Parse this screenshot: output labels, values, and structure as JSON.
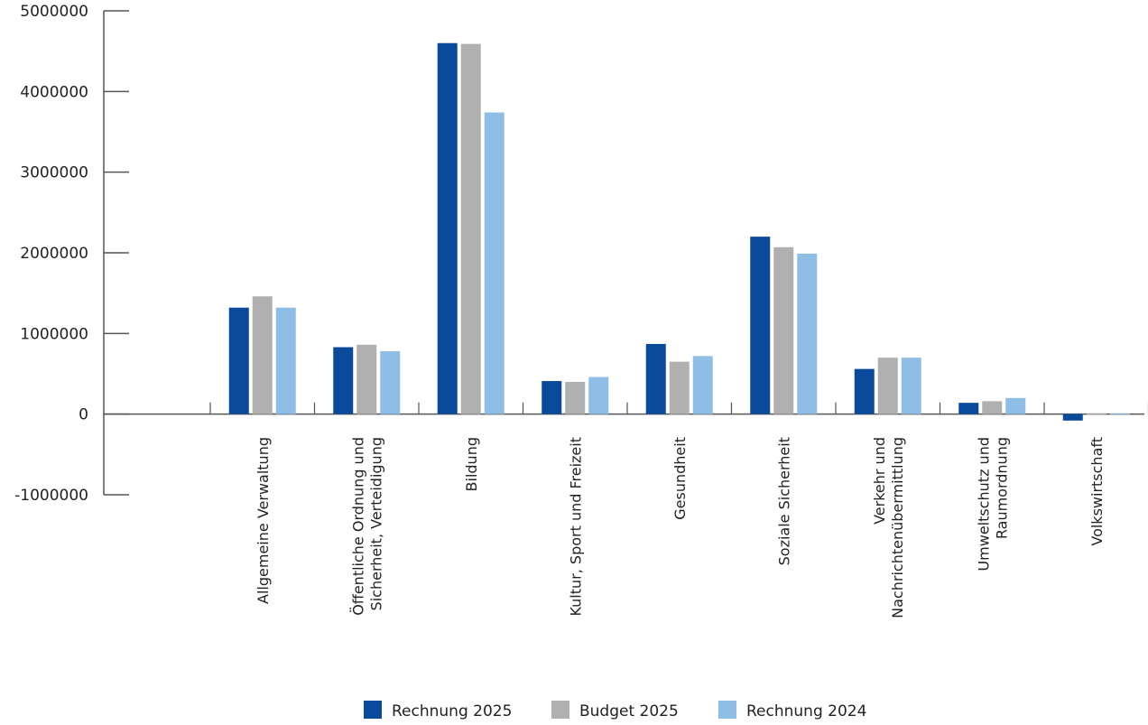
{
  "chart_data": {
    "type": "bar",
    "title": "",
    "xlabel": "",
    "ylabel": "",
    "ylim": [
      -1000000,
      5000000
    ],
    "yticks": [
      5000000,
      4000000,
      3000000,
      2000000,
      1000000,
      0,
      -1000000
    ],
    "yticks_labels": [
      "5000000",
      "4000000",
      "3000000",
      "2000000",
      "1000000",
      "0",
      "-1000000"
    ],
    "grid": false,
    "legend_position": "bottom",
    "categories": [
      [
        "Allgemeine Verwaltung"
      ],
      [
        "Öffentliche Ordnung und",
        "Sicherheit, Verteidigung"
      ],
      [
        "Bildung"
      ],
      [
        "Kultur, Sport und Freizeit"
      ],
      [
        "Gesundheit"
      ],
      [
        "Soziale Sicherheit"
      ],
      [
        "Verkehr und",
        "Nachrichtenübermittlung"
      ],
      [
        "Umweltschutz und",
        "Raumordnung"
      ],
      [
        "Volkswirtschaft"
      ]
    ],
    "series": [
      {
        "name": "Rechnung 2025",
        "color": "#0a4a9a",
        "values": [
          1320000,
          830000,
          4600000,
          410000,
          870000,
          2200000,
          560000,
          140000,
          -80000
        ]
      },
      {
        "name": "Budget 2025",
        "color": "#b0b0b0",
        "values": [
          1460000,
          860000,
          4590000,
          400000,
          650000,
          2070000,
          700000,
          160000,
          5000
        ]
      },
      {
        "name": "Rechnung 2024",
        "color": "#8ebde6",
        "values": [
          1320000,
          780000,
          3740000,
          460000,
          720000,
          1990000,
          700000,
          200000,
          5000
        ]
      }
    ]
  }
}
